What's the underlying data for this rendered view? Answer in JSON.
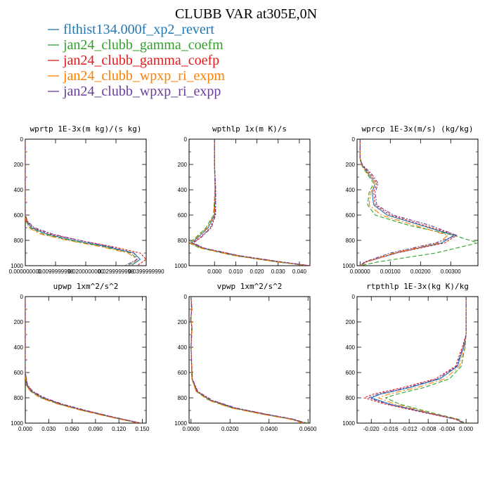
{
  "figure_title": "CLUBB VAR at305E,0N",
  "legend": [
    {
      "label": "flthist134.000f_xp2_revert",
      "color": "#1f78b4"
    },
    {
      "label": "jan24_clubb_gamma_coefm",
      "color": "#33a02c"
    },
    {
      "label": "jan24_clubb_gamma_coefp",
      "color": "#e31a1c"
    },
    {
      "label": "jan24_clubb_wpxp_ri_expm",
      "color": "#ff7f00"
    },
    {
      "label": "jan24_clubb_wpxp_ri_expp",
      "color": "#6a3d9a"
    }
  ],
  "chart_data": [
    {
      "type": "line",
      "title": "wprtp  1E-3x(m kg)/(s kg)",
      "xlim": [
        0,
        0.04
      ],
      "ylim": [
        1000,
        0
      ],
      "yticks": [
        0,
        200,
        400,
        600,
        800,
        1000
      ],
      "xticks": [
        0,
        0.01,
        0.02,
        0.03,
        0.04
      ],
      "xtick_labels": [
        "0.000000000",
        "0.0099999998",
        "0.0200000000",
        "0.0299999998",
        "0.0399999990"
      ],
      "shape": "exp_right",
      "series": [
        {
          "color": "#1f78b4",
          "x": [
            0,
            0,
            0,
            0.0005,
            0.002,
            0.007,
            0.016,
            0.027,
            0.036,
            0.038,
            0.035
          ],
          "y": [
            0,
            300,
            600,
            650,
            700,
            750,
            800,
            850,
            900,
            950,
            1000
          ]
        },
        {
          "color": "#33a02c",
          "x": [
            0,
            0,
            0,
            0.0003,
            0.0015,
            0.006,
            0.015,
            0.026,
            0.035,
            0.037,
            0.034
          ],
          "y": [
            0,
            300,
            600,
            650,
            700,
            750,
            800,
            850,
            900,
            950,
            1000
          ]
        },
        {
          "color": "#e31a1c",
          "x": [
            0,
            0,
            0,
            0.0006,
            0.0025,
            0.008,
            0.018,
            0.029,
            0.038,
            0.04,
            0.037
          ],
          "y": [
            0,
            300,
            600,
            650,
            700,
            750,
            800,
            850,
            900,
            950,
            1000
          ]
        },
        {
          "color": "#ff7f00",
          "x": [
            0,
            0,
            0,
            0.0002,
            0.0012,
            0.005,
            0.014,
            0.025,
            0.034,
            0.037,
            0.035
          ],
          "y": [
            0,
            300,
            600,
            650,
            700,
            750,
            800,
            850,
            900,
            950,
            1000
          ]
        },
        {
          "color": "#6a3d9a",
          "x": [
            0,
            0,
            0,
            0.0008,
            0.003,
            0.009,
            0.018,
            0.028,
            0.036,
            0.037,
            0.033
          ],
          "y": [
            0,
            300,
            600,
            650,
            700,
            750,
            800,
            850,
            900,
            950,
            1000
          ]
        }
      ]
    },
    {
      "type": "line",
      "title": "wpthlp  1x(m K)/s",
      "xlim": [
        -0.012,
        0.045
      ],
      "ylim": [
        1000,
        0
      ],
      "yticks": [
        0,
        200,
        400,
        600,
        800,
        1000
      ],
      "xticks": [
        0,
        0.01,
        0.02,
        0.03,
        0.04
      ],
      "xtick_labels": [
        "0.000",
        "0.010",
        "0.020",
        "0.030",
        "0.040"
      ],
      "series": [
        {
          "color": "#1f78b4",
          "x": [
            0,
            0,
            0.0003,
            0,
            -0.003,
            -0.008,
            -0.011,
            -0.006,
            0.01,
            0.03,
            0.045
          ],
          "y": [
            0,
            200,
            400,
            600,
            700,
            780,
            820,
            860,
            920,
            970,
            1000
          ]
        },
        {
          "color": "#33a02c",
          "x": [
            0,
            0,
            0.0002,
            -0.0005,
            -0.004,
            -0.009,
            -0.012,
            -0.007,
            0.009,
            0.029,
            0.044
          ],
          "y": [
            0,
            200,
            400,
            600,
            700,
            780,
            820,
            860,
            920,
            970,
            1000
          ]
        },
        {
          "color": "#e31a1c",
          "x": [
            0,
            0,
            0.0004,
            0.0003,
            -0.002,
            -0.007,
            -0.0105,
            -0.0055,
            0.011,
            0.031,
            0.045
          ],
          "y": [
            0,
            200,
            400,
            600,
            700,
            780,
            820,
            860,
            920,
            970,
            1000
          ]
        },
        {
          "color": "#ff7f00",
          "x": [
            0,
            0,
            0.0002,
            -0.0003,
            -0.0035,
            -0.0085,
            -0.0115,
            -0.0065,
            0.0095,
            0.0295,
            0.0445
          ],
          "y": [
            0,
            200,
            400,
            600,
            700,
            780,
            820,
            860,
            920,
            970,
            1000
          ]
        },
        {
          "color": "#6a3d9a",
          "x": [
            0,
            0,
            0.0006,
            0.0005,
            -0.0015,
            -0.0065,
            -0.01,
            -0.005,
            0.0115,
            0.0315,
            0.045
          ],
          "y": [
            0,
            200,
            400,
            600,
            700,
            780,
            820,
            860,
            920,
            970,
            1000
          ]
        }
      ]
    },
    {
      "type": "line",
      "title": "wprcp  1E-3x(m/s) (kg/kg)",
      "xlim": [
        -0.0001,
        0.0039
      ],
      "ylim": [
        1000,
        0
      ],
      "yticks": [
        0,
        200,
        400,
        600,
        800,
        1000
      ],
      "xticks": [
        0,
        0.001,
        0.002,
        0.003
      ],
      "xtick_labels": [
        "0.00000",
        "0.00100",
        "0.00200",
        "0.00300"
      ],
      "series": [
        {
          "color": "#1f78b4",
          "x": [
            0,
            0,
            5e-05,
            0.0003,
            0.0005,
            0.0004,
            0.00045,
            0.0009,
            0.002,
            0.0031,
            0.0027,
            0.0012,
            0.0002,
            0
          ],
          "y": [
            0,
            150,
            200,
            280,
            350,
            420,
            520,
            600,
            680,
            760,
            820,
            900,
            970,
            1000
          ]
        },
        {
          "color": "#33a02c",
          "x": [
            0,
            0,
            3e-05,
            0.00025,
            0.00045,
            0.0003,
            0.00025,
            0.0005,
            0.0016,
            0.0031,
            0.0039,
            0.0025,
            0.0006,
            0
          ],
          "y": [
            0,
            150,
            200,
            280,
            350,
            420,
            520,
            600,
            680,
            760,
            820,
            900,
            970,
            1000
          ]
        },
        {
          "color": "#e31a1c",
          "x": [
            0,
            0,
            6e-05,
            0.00035,
            0.00055,
            0.00045,
            0.0005,
            0.001,
            0.0021,
            0.0032,
            0.0028,
            0.0012,
            0.0002,
            0
          ],
          "y": [
            0,
            150,
            200,
            280,
            350,
            420,
            520,
            600,
            680,
            760,
            820,
            900,
            970,
            1000
          ]
        },
        {
          "color": "#ff7f00",
          "x": [
            0,
            0,
            4e-05,
            0.00028,
            0.0005,
            0.00035,
            0.0003,
            0.0007,
            0.0018,
            0.0029,
            0.0026,
            0.0011,
            0.0002,
            0
          ],
          "y": [
            0,
            150,
            200,
            280,
            350,
            420,
            520,
            600,
            680,
            760,
            820,
            900,
            970,
            1000
          ]
        },
        {
          "color": "#6a3d9a",
          "x": [
            0,
            0,
            7e-05,
            0.0004,
            0.0006,
            0.0005,
            0.00055,
            0.0011,
            0.0023,
            0.0032,
            0.0025,
            0.001,
            0.00015,
            0
          ],
          "y": [
            0,
            150,
            200,
            280,
            350,
            420,
            520,
            600,
            680,
            760,
            820,
            900,
            970,
            1000
          ]
        }
      ]
    },
    {
      "type": "line",
      "title": "upwp  1xm^2/s^2",
      "xlim": [
        0,
        0.155
      ],
      "ylim": [
        1000,
        0
      ],
      "yticks": [
        0,
        200,
        400,
        600,
        800,
        1000
      ],
      "xticks": [
        0,
        0.03,
        0.06,
        0.09,
        0.12,
        0.15
      ],
      "xtick_labels": [
        "0.000",
        "0.030",
        "0.060",
        "0.090",
        "0.120",
        "0.150"
      ],
      "series": [
        {
          "color": "#1f78b4",
          "x": [
            0,
            0,
            0.002,
            0.008,
            0.022,
            0.045,
            0.075,
            0.11,
            0.14,
            0.148
          ],
          "y": [
            0,
            600,
            700,
            750,
            800,
            850,
            900,
            950,
            990,
            1000
          ]
        },
        {
          "color": "#33a02c",
          "x": [
            0,
            0,
            0.0015,
            0.007,
            0.02,
            0.043,
            0.073,
            0.108,
            0.138,
            0.146
          ],
          "y": [
            0,
            600,
            700,
            750,
            800,
            850,
            900,
            950,
            990,
            1000
          ]
        },
        {
          "color": "#e31a1c",
          "x": [
            0,
            0,
            0.0025,
            0.009,
            0.023,
            0.046,
            0.076,
            0.111,
            0.141,
            0.149
          ],
          "y": [
            0,
            600,
            700,
            750,
            800,
            850,
            900,
            950,
            990,
            1000
          ]
        },
        {
          "color": "#ff7f00",
          "x": [
            0,
            0,
            0.0012,
            0.0065,
            0.019,
            0.042,
            0.072,
            0.107,
            0.137,
            0.145
          ],
          "y": [
            0,
            600,
            700,
            750,
            800,
            850,
            900,
            950,
            990,
            1000
          ]
        },
        {
          "color": "#6a3d9a",
          "x": [
            0,
            0,
            0.003,
            0.01,
            0.025,
            0.048,
            0.078,
            0.112,
            0.14,
            0.147
          ],
          "y": [
            0,
            600,
            700,
            750,
            800,
            850,
            900,
            950,
            990,
            1000
          ]
        }
      ]
    },
    {
      "type": "line",
      "title": "vpwp  1xm^2/s^2",
      "xlim": [
        -0.001,
        0.061
      ],
      "ylim": [
        1000,
        0
      ],
      "yticks": [
        0,
        200,
        400,
        600,
        800,
        1000
      ],
      "xticks": [
        0,
        0.02,
        0.04,
        0.06
      ],
      "xtick_labels": [
        "0.0000",
        "0.0200",
        "0.0400",
        "0.0600"
      ],
      "series": [
        {
          "color": "#1f78b4",
          "x": [
            0,
            0.0003,
            0,
            0.0004,
            0,
            0.0005,
            0.003,
            0.01,
            0.022,
            0.038,
            0.052,
            0.058
          ],
          "y": [
            0,
            100,
            180,
            240,
            400,
            650,
            750,
            820,
            880,
            930,
            970,
            1000
          ]
        },
        {
          "color": "#33a02c",
          "x": [
            0,
            0.0002,
            0,
            0.0003,
            0,
            0.0004,
            0.0028,
            0.0095,
            0.021,
            0.037,
            0.052,
            0.06
          ],
          "y": [
            0,
            100,
            180,
            240,
            400,
            650,
            750,
            820,
            880,
            930,
            970,
            1000
          ]
        },
        {
          "color": "#e31a1c",
          "x": [
            0,
            0.0004,
            -0.0002,
            0.0005,
            0,
            0.0006,
            0.0032,
            0.0105,
            0.0225,
            0.0385,
            0.0525,
            0.058
          ],
          "y": [
            0,
            100,
            180,
            240,
            400,
            650,
            750,
            820,
            880,
            930,
            970,
            1000
          ]
        },
        {
          "color": "#ff7f00",
          "x": [
            0,
            0.0002,
            0,
            0.0004,
            0,
            0.0004,
            0.0026,
            0.009,
            0.0205,
            0.0365,
            0.051,
            0.0575
          ],
          "y": [
            0,
            100,
            180,
            240,
            400,
            650,
            750,
            820,
            880,
            930,
            970,
            1000
          ]
        },
        {
          "color": "#6a3d9a",
          "x": [
            0,
            0.0005,
            -0.0003,
            0.0006,
            0,
            0.0007,
            0.0035,
            0.011,
            0.023,
            0.039,
            0.053,
            0.0585
          ],
          "y": [
            0,
            100,
            180,
            240,
            400,
            650,
            750,
            820,
            880,
            930,
            970,
            1000
          ]
        }
      ]
    },
    {
      "type": "line",
      "title": "rtpthlp  1E-3x(kg K)/kg",
      "xlim": [
        -0.023,
        0.0025
      ],
      "ylim": [
        1000,
        0
      ],
      "yticks": [
        0,
        200,
        400,
        600,
        800,
        1000
      ],
      "xticks": [
        -0.02,
        -0.016,
        -0.012,
        -0.008,
        -0.004,
        0
      ],
      "xtick_labels": [
        "-0.020",
        "-0.016",
        "-0.012",
        "-0.008",
        "-0.004",
        "0.000"
      ],
      "series": [
        {
          "color": "#1f78b4",
          "x": [
            0,
            0,
            -0.0005,
            -0.001,
            -0.0018,
            -0.0055,
            -0.012,
            -0.018,
            -0.02,
            -0.016,
            -0.008,
            -0.002,
            -0.0005
          ],
          "y": [
            0,
            300,
            400,
            450,
            550,
            650,
            720,
            770,
            800,
            850,
            920,
            970,
            1000
          ]
        },
        {
          "color": "#33a02c",
          "x": [
            0,
            0,
            -0.0002,
            -0.0005,
            -0.001,
            -0.0035,
            -0.009,
            -0.0145,
            -0.017,
            -0.014,
            -0.007,
            -0.0015,
            -0.0003
          ],
          "y": [
            0,
            300,
            400,
            450,
            550,
            650,
            720,
            770,
            800,
            850,
            920,
            970,
            1000
          ]
        },
        {
          "color": "#e31a1c",
          "x": [
            0,
            0,
            -0.0008,
            -0.0013,
            -0.0022,
            -0.0065,
            -0.0135,
            -0.0195,
            -0.0215,
            -0.017,
            -0.0085,
            -0.0022,
            -0.0006
          ],
          "y": [
            0,
            300,
            400,
            450,
            550,
            650,
            720,
            770,
            800,
            850,
            920,
            970,
            1000
          ]
        },
        {
          "color": "#ff7f00",
          "x": [
            0,
            0,
            -0.0003,
            -0.0007,
            -0.0014,
            -0.0045,
            -0.0105,
            -0.0163,
            -0.0185,
            -0.015,
            -0.0075,
            -0.0018,
            -0.0004
          ],
          "y": [
            0,
            300,
            400,
            450,
            550,
            650,
            720,
            770,
            800,
            850,
            920,
            970,
            1000
          ]
        },
        {
          "color": "#6a3d9a",
          "x": [
            0,
            0,
            -0.0006,
            -0.0011,
            -0.002,
            -0.006,
            -0.0125,
            -0.0185,
            -0.0205,
            -0.0165,
            -0.008,
            -0.002,
            -0.0005
          ],
          "y": [
            0,
            300,
            400,
            450,
            550,
            650,
            720,
            770,
            800,
            850,
            920,
            970,
            1000
          ]
        }
      ]
    }
  ]
}
